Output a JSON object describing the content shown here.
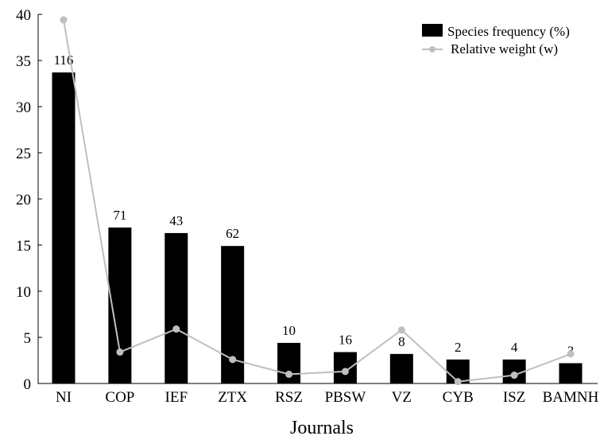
{
  "chart_data": {
    "type": "bar",
    "xlabel": "Journals",
    "ylabel": "",
    "ylim": [
      0,
      40
    ],
    "yticks": [
      "0",
      "5",
      "10",
      "15",
      "20",
      "25",
      "30",
      "35",
      "40"
    ],
    "categories": [
      "NI",
      "COP",
      "IEF",
      "ZTX",
      "RSZ",
      "PBSW",
      "VZ",
      "CYB",
      "ISZ",
      "BAMNH"
    ],
    "bar_labels": [
      "116",
      "71",
      "43",
      "62",
      "10",
      "16",
      "8",
      "2",
      "4",
      "3"
    ],
    "series": [
      {
        "name": "Species frequency (%)",
        "kind": "bar",
        "color": "#000000",
        "values": [
          33.7,
          16.9,
          16.3,
          14.9,
          4.4,
          3.4,
          3.2,
          2.6,
          2.6,
          2.2
        ]
      },
      {
        "name": "Relative weight (w)",
        "kind": "line",
        "color": "#bfbfbf",
        "values": [
          39.4,
          3.4,
          5.9,
          2.6,
          1.0,
          1.3,
          5.8,
          0.2,
          0.9,
          3.2
        ]
      }
    ],
    "legend_position": "top-right",
    "grid": false
  }
}
